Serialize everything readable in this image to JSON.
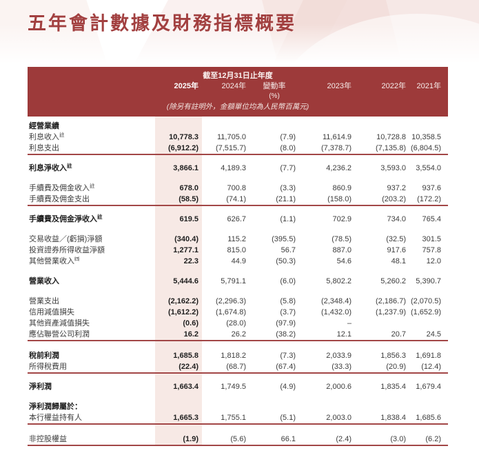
{
  "page": {
    "title": "五年會計數據及財務指標概要"
  },
  "colors": {
    "header_bg": "#9d3a3a",
    "highlight_column": "#f7e9e5",
    "rule_line": "#a24646",
    "title_text": "#a24040"
  },
  "table": {
    "header": {
      "period_title": "截至12月31日止年度",
      "columns": [
        "2025年",
        "2024年",
        "變動率",
        "2023年",
        "2022年",
        "2021年"
      ],
      "pct": "(%)",
      "unit_note": "(除另有註明外，金額單位均為人民幣百萬元)"
    },
    "rows": [
      {
        "type": "section",
        "label": "經營業績"
      },
      {
        "type": "data",
        "label": "利息收入",
        "sup": "註",
        "values": [
          "10,778.3",
          "11,705.0",
          "(7.9)",
          "11,614.9",
          "10,728.8",
          "10,358.5"
        ]
      },
      {
        "type": "data",
        "label": "利息支出",
        "values": [
          "(6,912.2)",
          "(7,515.7)",
          "(8.0)",
          "(7,378.7)",
          "(7,135.8)",
          "(6,804.5)"
        ]
      },
      {
        "type": "rule"
      },
      {
        "type": "gap",
        "h": 11
      },
      {
        "type": "data",
        "bold": true,
        "label": "利息淨收入",
        "sup": "註",
        "values": [
          "3,866.1",
          "4,189.3",
          "(7.7)",
          "4,236.2",
          "3,593.0",
          "3,554.0"
        ]
      },
      {
        "type": "gap",
        "h": 13
      },
      {
        "type": "data",
        "label": "手續費及佣金收入",
        "sup": "註",
        "values": [
          "678.0",
          "700.8",
          "(3.3)",
          "860.9",
          "937.2",
          "937.6"
        ]
      },
      {
        "type": "data",
        "label": "手續費及佣金支出",
        "values": [
          "(58.5)",
          "(74.1)",
          "(21.1)",
          "(158.0)",
          "(203.2)",
          "(172.2)"
        ]
      },
      {
        "type": "rule"
      },
      {
        "type": "gap",
        "h": 11
      },
      {
        "type": "data",
        "bold": true,
        "label": "手續費及佣金淨收入",
        "sup": "註",
        "values": [
          "619.5",
          "626.7",
          "(1.1)",
          "702.9",
          "734.0",
          "765.4"
        ]
      },
      {
        "type": "gap",
        "h": 13
      },
      {
        "type": "data",
        "label": "交易收益／(虧損)淨額",
        "values": [
          "(340.4)",
          "115.2",
          "(395.5)",
          "(78.5)",
          "(32.5)",
          "301.5"
        ]
      },
      {
        "type": "data",
        "label": "投資證券所得收益淨額",
        "values": [
          "1,277.1",
          "815.0",
          "56.7",
          "887.0",
          "917.6",
          "757.8"
        ]
      },
      {
        "type": "data",
        "label": "其他營業收入",
        "sup": "㈣",
        "values": [
          "22.3",
          "44.9",
          "(50.3)",
          "54.6",
          "48.1",
          "12.0"
        ]
      },
      {
        "type": "gap",
        "h": 13
      },
      {
        "type": "data",
        "bold": true,
        "label": "營業收入",
        "values": [
          "5,444.6",
          "5,791.1",
          "(6.0)",
          "5,802.2",
          "5,260.2",
          "5,390.7"
        ]
      },
      {
        "type": "gap",
        "h": 13
      },
      {
        "type": "data",
        "label": "營業支出",
        "values": [
          "(2,162.2)",
          "(2,296.3)",
          "(5.8)",
          "(2,348.4)",
          "(2,186.7)",
          "(2,070.5)"
        ]
      },
      {
        "type": "data",
        "label": "信用減值損失",
        "values": [
          "(1,612.2)",
          "(1,674.8)",
          "(3.7)",
          "(1,432.0)",
          "(1,237.9)",
          "(1,652.9)"
        ]
      },
      {
        "type": "data",
        "label": "其他資產減值損失",
        "values": [
          "(0.6)",
          "(28.0)",
          "(97.9)",
          "–",
          "",
          ""
        ]
      },
      {
        "type": "data",
        "label": "應佔聯營公司利潤",
        "values": [
          "16.2",
          "26.2",
          "(38.2)",
          "12.1",
          "20.7",
          "24.5"
        ]
      },
      {
        "type": "rule"
      },
      {
        "type": "gap",
        "h": 13
      },
      {
        "type": "data",
        "bold": true,
        "label": "稅前利潤",
        "values": [
          "1,685.8",
          "1,818.2",
          "(7.3)",
          "2,033.9",
          "1,856.3",
          "1,691.8"
        ]
      },
      {
        "type": "data",
        "label": "所得稅費用",
        "values": [
          "(22.4)",
          "(68.7)",
          "(67.4)",
          "(33.3)",
          "(20.9)",
          "(12.4)"
        ]
      },
      {
        "type": "rule"
      },
      {
        "type": "gap",
        "h": 11
      },
      {
        "type": "data",
        "bold": true,
        "label": "淨利潤",
        "values": [
          "1,663.4",
          "1,749.5",
          "(4.9)",
          "2,000.6",
          "1,835.4",
          "1,679.4"
        ]
      },
      {
        "type": "gap",
        "h": 13
      },
      {
        "type": "section",
        "label": "淨利潤歸屬於："
      },
      {
        "type": "data",
        "label": "本行權益持有人",
        "values": [
          "1,665.3",
          "1,755.1",
          "(5.1)",
          "2,003.0",
          "1,838.4",
          "1,685.6"
        ]
      },
      {
        "type": "rule"
      },
      {
        "type": "gap",
        "h": 13
      },
      {
        "type": "data",
        "label": "非控股權益",
        "values": [
          "(1.9)",
          "(5.6)",
          "66.1",
          "(2.4)",
          "(3.0)",
          "(6.2)"
        ]
      },
      {
        "type": "rule"
      }
    ]
  }
}
